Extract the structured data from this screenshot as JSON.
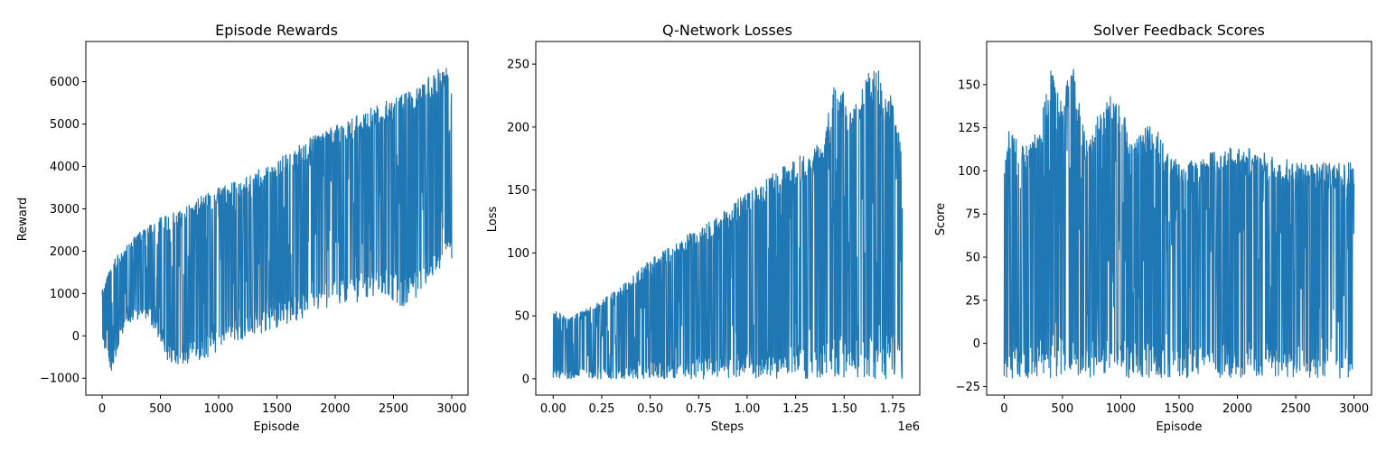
{
  "chart_data": [
    {
      "type": "line",
      "title": "Episode Rewards",
      "xlabel": "Episode",
      "ylabel": "Reward",
      "xlim": [
        -140,
        3140
      ],
      "ylim": [
        -1400,
        6950
      ],
      "xticks": [
        0,
        500,
        1000,
        1500,
        2000,
        2500,
        3000
      ],
      "xtick_labels": [
        "0",
        "500",
        "1000",
        "1500",
        "2000",
        "2500",
        "3000"
      ],
      "yticks": [
        -1000,
        0,
        1000,
        2000,
        3000,
        4000,
        5000,
        6000
      ],
      "ytick_labels": [
        "−1000",
        "0",
        "1000",
        "2000",
        "3000",
        "4000",
        "5000",
        "6000"
      ],
      "color": "#1f77b4",
      "series": [
        {
          "points": [
            [
              0,
              1100
            ],
            [
              50,
              1500
            ],
            [
              100,
              1800
            ],
            [
              200,
              2100
            ],
            [
              300,
              2400
            ],
            [
              500,
              2800
            ],
            [
              700,
              3000
            ],
            [
              900,
              3400
            ],
            [
              1200,
              3700
            ],
            [
              1500,
              4200
            ],
            [
              1800,
              4700
            ],
            [
              2100,
              5100
            ],
            [
              2400,
              5500
            ],
            [
              2700,
              5900
            ],
            [
              2850,
              6200
            ],
            [
              2950,
              6500
            ],
            [
              3000,
              5700
            ]
          ],
          "lower": [
            [
              0,
              -100
            ],
            [
              80,
              -900
            ],
            [
              200,
              300
            ],
            [
              400,
              400
            ],
            [
              600,
              -800
            ],
            [
              800,
              -600
            ],
            [
              1000,
              -400
            ],
            [
              1200,
              -100
            ],
            [
              1500,
              200
            ],
            [
              1800,
              500
            ],
            [
              2100,
              700
            ],
            [
              2400,
              1000
            ],
            [
              2600,
              600
            ],
            [
              2800,
              1200
            ],
            [
              3000,
              1800
            ]
          ]
        }
      ]
    },
    {
      "type": "line",
      "title": "Q-Network Losses",
      "xlabel": "Steps",
      "ylabel": "Loss",
      "x_scale_label": "1e6",
      "xlim": [
        -0.09,
        1.89
      ],
      "ylim": [
        -13,
        268
      ],
      "xticks": [
        0.0,
        0.25,
        0.5,
        0.75,
        1.0,
        1.25,
        1.5,
        1.75
      ],
      "xtick_labels": [
        "0.00",
        "0.25",
        "0.50",
        "0.75",
        "1.00",
        "1.25",
        "1.50",
        "1.75"
      ],
      "yticks": [
        0,
        50,
        100,
        150,
        200,
        250
      ],
      "ytick_labels": [
        "0",
        "50",
        "100",
        "150",
        "200",
        "250"
      ],
      "color": "#1f77b4",
      "series": [
        {
          "points": [
            [
              0.0,
              55
            ],
            [
              0.1,
              50
            ],
            [
              0.25,
              62
            ],
            [
              0.4,
              80
            ],
            [
              0.5,
              95
            ],
            [
              0.6,
              105
            ],
            [
              0.75,
              120
            ],
            [
              0.9,
              135
            ],
            [
              1.0,
              150
            ],
            [
              1.1,
              160
            ],
            [
              1.25,
              175
            ],
            [
              1.4,
              190
            ],
            [
              1.45,
              245
            ],
            [
              1.55,
              215
            ],
            [
              1.6,
              235
            ],
            [
              1.67,
              256
            ],
            [
              1.7,
              225
            ],
            [
              1.75,
              230
            ],
            [
              1.8,
              175
            ]
          ],
          "lower": [
            [
              0.0,
              0
            ],
            [
              1.8,
              0
            ]
          ]
        }
      ]
    },
    {
      "type": "line",
      "title": "Solver Feedback Scores",
      "xlabel": "Episode",
      "ylabel": "Score",
      "xlim": [
        -150,
        3150
      ],
      "ylim": [
        -30,
        175
      ],
      "xticks": [
        0,
        500,
        1000,
        1500,
        2000,
        2500,
        3000
      ],
      "xtick_labels": [
        "0",
        "500",
        "1000",
        "1500",
        "2000",
        "2500",
        "3000"
      ],
      "yticks": [
        -25,
        0,
        25,
        50,
        75,
        100,
        125,
        150
      ],
      "ytick_labels": [
        "−25",
        "0",
        "25",
        "50",
        "75",
        "100",
        "125",
        "150"
      ],
      "color": "#1f77b4",
      "series": [
        {
          "points": [
            [
              0,
              100
            ],
            [
              20,
              110
            ],
            [
              40,
              125
            ],
            [
              100,
              120
            ],
            [
              200,
              115
            ],
            [
              300,
              125
            ],
            [
              400,
              160
            ],
            [
              500,
              140
            ],
            [
              580,
              165
            ],
            [
              700,
              120
            ],
            [
              900,
              145
            ],
            [
              1000,
              140
            ],
            [
              1100,
              115
            ],
            [
              1270,
              130
            ],
            [
              1380,
              115
            ],
            [
              1500,
              105
            ],
            [
              2000,
              115
            ],
            [
              2500,
              105
            ],
            [
              3000,
              105
            ]
          ],
          "lower": [
            [
              0,
              -20
            ],
            [
              3000,
              -20
            ]
          ],
          "gap_x": 1820
        }
      ]
    }
  ]
}
